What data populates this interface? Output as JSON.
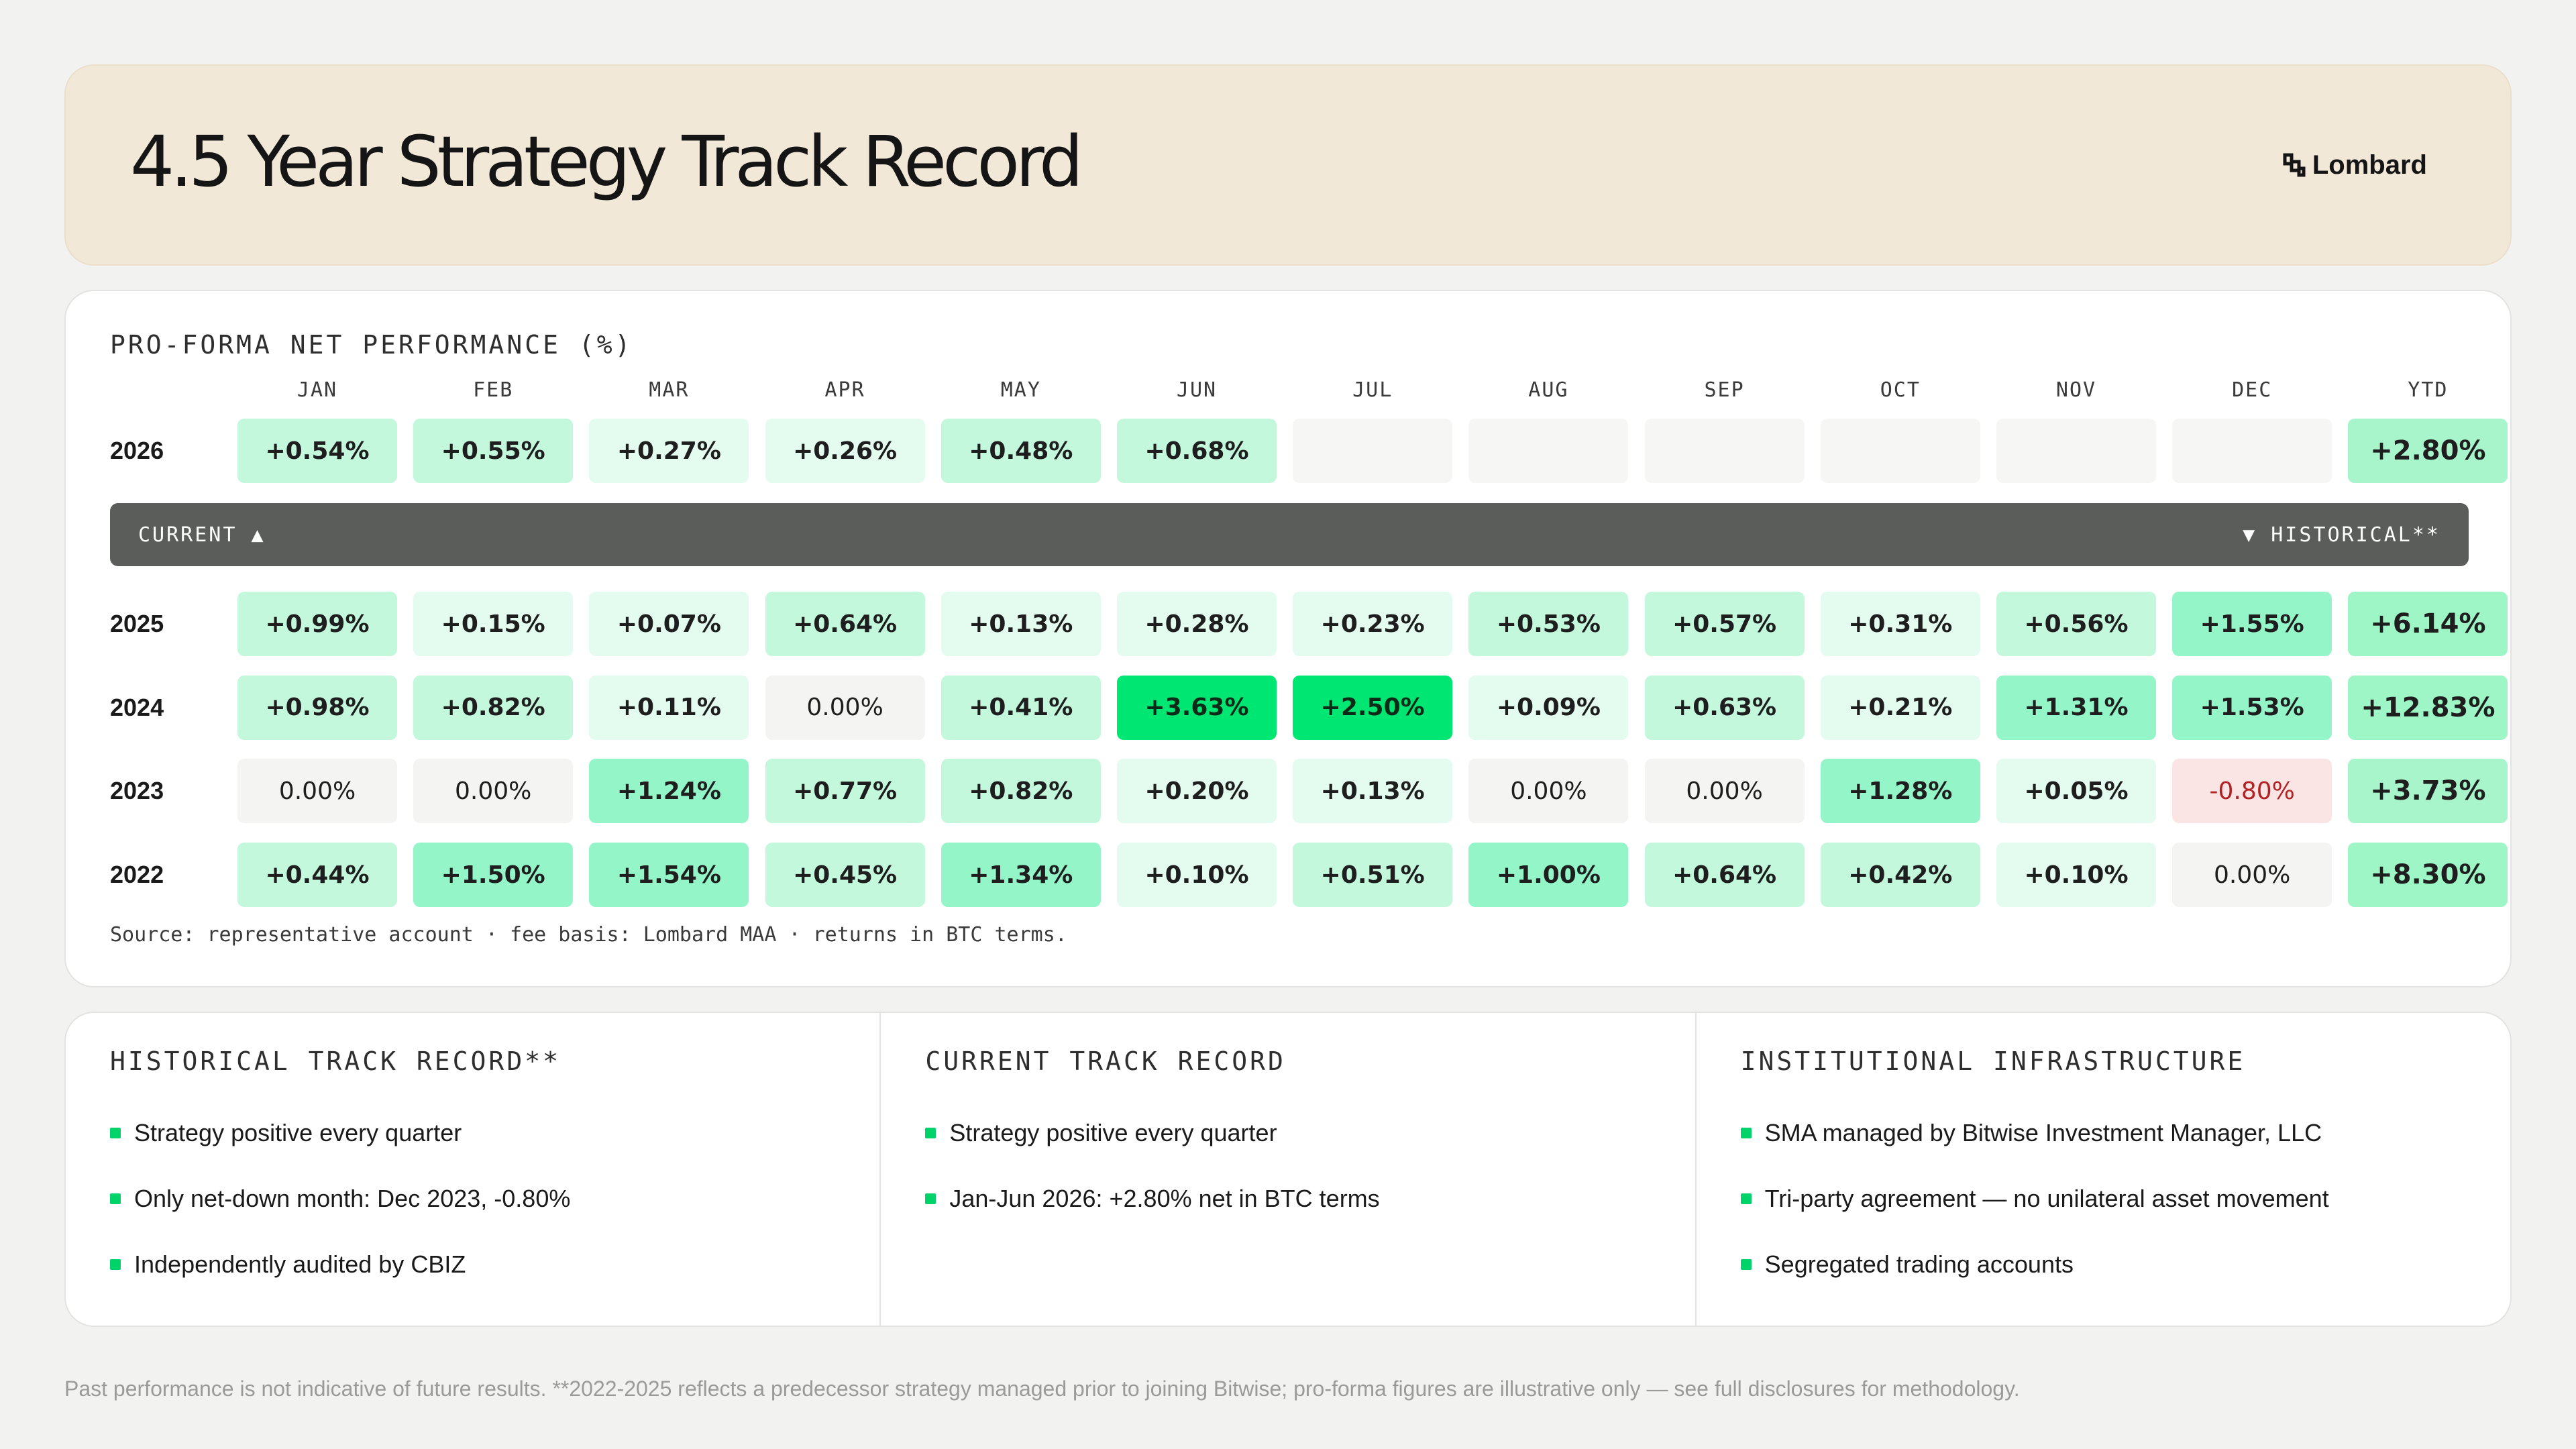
{
  "header": {
    "title": "4.5 Year Strategy Track Record",
    "brand": "Lombard"
  },
  "performance": {
    "title": "PRO-FORMA NET PERFORMANCE (%)",
    "months": [
      "JAN",
      "FEB",
      "MAR",
      "APR",
      "MAY",
      "JUN",
      "JUL",
      "AUG",
      "SEP",
      "OCT",
      "NOV",
      "DEC",
      "YTD"
    ],
    "current_label": "CURRENT ▲",
    "historical_label": "▼ HISTORICAL**",
    "current_rows": [
      {
        "year": "2026",
        "values": [
          "+0.54%",
          "+0.55%",
          "+0.27%",
          "+0.26%",
          "+0.48%",
          "+0.68%",
          "",
          "",
          "",
          "",
          "",
          ""
        ],
        "ytd": "+2.80%"
      }
    ],
    "historical_rows": [
      {
        "year": "2025",
        "values": [
          "+0.99%",
          "+0.15%",
          "+0.07%",
          "+0.64%",
          "+0.13%",
          "+0.28%",
          "+0.23%",
          "+0.53%",
          "+0.57%",
          "+0.31%",
          "+0.56%",
          "+1.55%"
        ],
        "ytd": "+6.14%"
      },
      {
        "year": "2024",
        "values": [
          "+0.98%",
          "+0.82%",
          "+0.11%",
          "0.00%",
          "+0.41%",
          "+3.63%",
          "+2.50%",
          "+0.09%",
          "+0.63%",
          "+0.21%",
          "+1.31%",
          "+1.53%"
        ],
        "ytd": "+12.83%"
      },
      {
        "year": "2023",
        "values": [
          "0.00%",
          "0.00%",
          "+1.24%",
          "+0.77%",
          "+0.82%",
          "+0.20%",
          "+0.13%",
          "0.00%",
          "0.00%",
          "+1.28%",
          "+0.05%",
          "-0.80%"
        ],
        "ytd": "+3.73%"
      },
      {
        "year": "2022",
        "values": [
          "+0.44%",
          "+1.50%",
          "+1.54%",
          "+0.45%",
          "+1.34%",
          "+0.10%",
          "+0.51%",
          "+1.00%",
          "+0.64%",
          "+0.42%",
          "+0.10%",
          "0.00%"
        ],
        "ytd": "+8.30%"
      }
    ],
    "source": "Source: representative account · fee basis: Lombard MAA · returns in BTC terms."
  },
  "info": {
    "columns": [
      {
        "title": "HISTORICAL TRACK RECORD**",
        "items": [
          "Strategy positive every quarter",
          "Only net-down month: Dec 2023, -0.80%",
          "Independently audited by CBIZ"
        ]
      },
      {
        "title": "CURRENT TRACK RECORD",
        "items": [
          "Strategy positive every quarter",
          "Jan-Jun 2026: +2.80% net in BTC terms"
        ]
      },
      {
        "title": "INSTITUTIONAL INFRASTRUCTURE",
        "items": [
          "SMA managed by Bitwise Investment Manager, LLC",
          "Tri-party agreement — no unilateral asset movement",
          "Segregated trading accounts"
        ]
      }
    ]
  },
  "footnote": "Past performance is not indicative of future results. **2022-2025 reflects a predecessor strategy managed prior to joining Bitwise; pro-forma figures are illustrative only — see full disclosures for methodology.",
  "colors": {
    "accent_green": "#00d36a",
    "negative_bg": "#fbe4e4",
    "negative_text": "#b22222",
    "zero_bg": "#f4f4f3",
    "empty_bg": "#f6f6f5",
    "bar_bg": "#5a5d59",
    "header_bg": "#f2e8d8"
  }
}
